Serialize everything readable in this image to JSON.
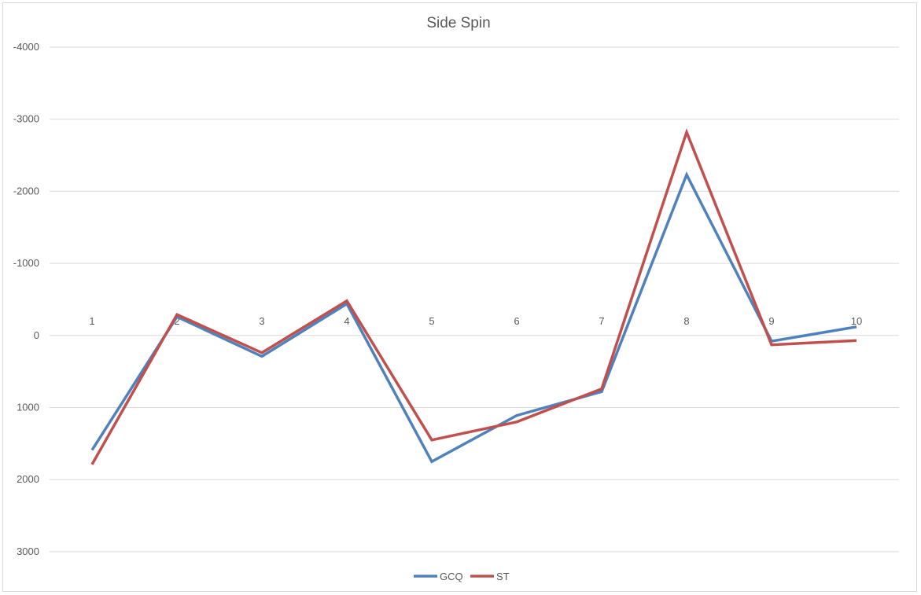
{
  "chart_data": {
    "type": "line",
    "title": "Side Spin",
    "xlabel": "",
    "ylabel": "",
    "categories": [
      "1",
      "2",
      "3",
      "4",
      "5",
      "6",
      "7",
      "8",
      "9",
      "10"
    ],
    "yticks": [
      -4000,
      -3000,
      -2000,
      -1000,
      0,
      1000,
      2000,
      3000
    ],
    "ylim": [
      -4000,
      3300
    ],
    "y_axis_reversed": true,
    "grid": true,
    "legend_position": "bottom",
    "series": [
      {
        "name": "GCQ",
        "color": "#4f81bd",
        "values": [
          1590,
          -260,
          290,
          -440,
          1750,
          1110,
          780,
          -2230,
          80,
          -120
        ]
      },
      {
        "name": "ST",
        "color": "#c0504d",
        "values": [
          1790,
          -290,
          240,
          -480,
          1450,
          1200,
          740,
          -2820,
          130,
          70
        ]
      }
    ]
  }
}
